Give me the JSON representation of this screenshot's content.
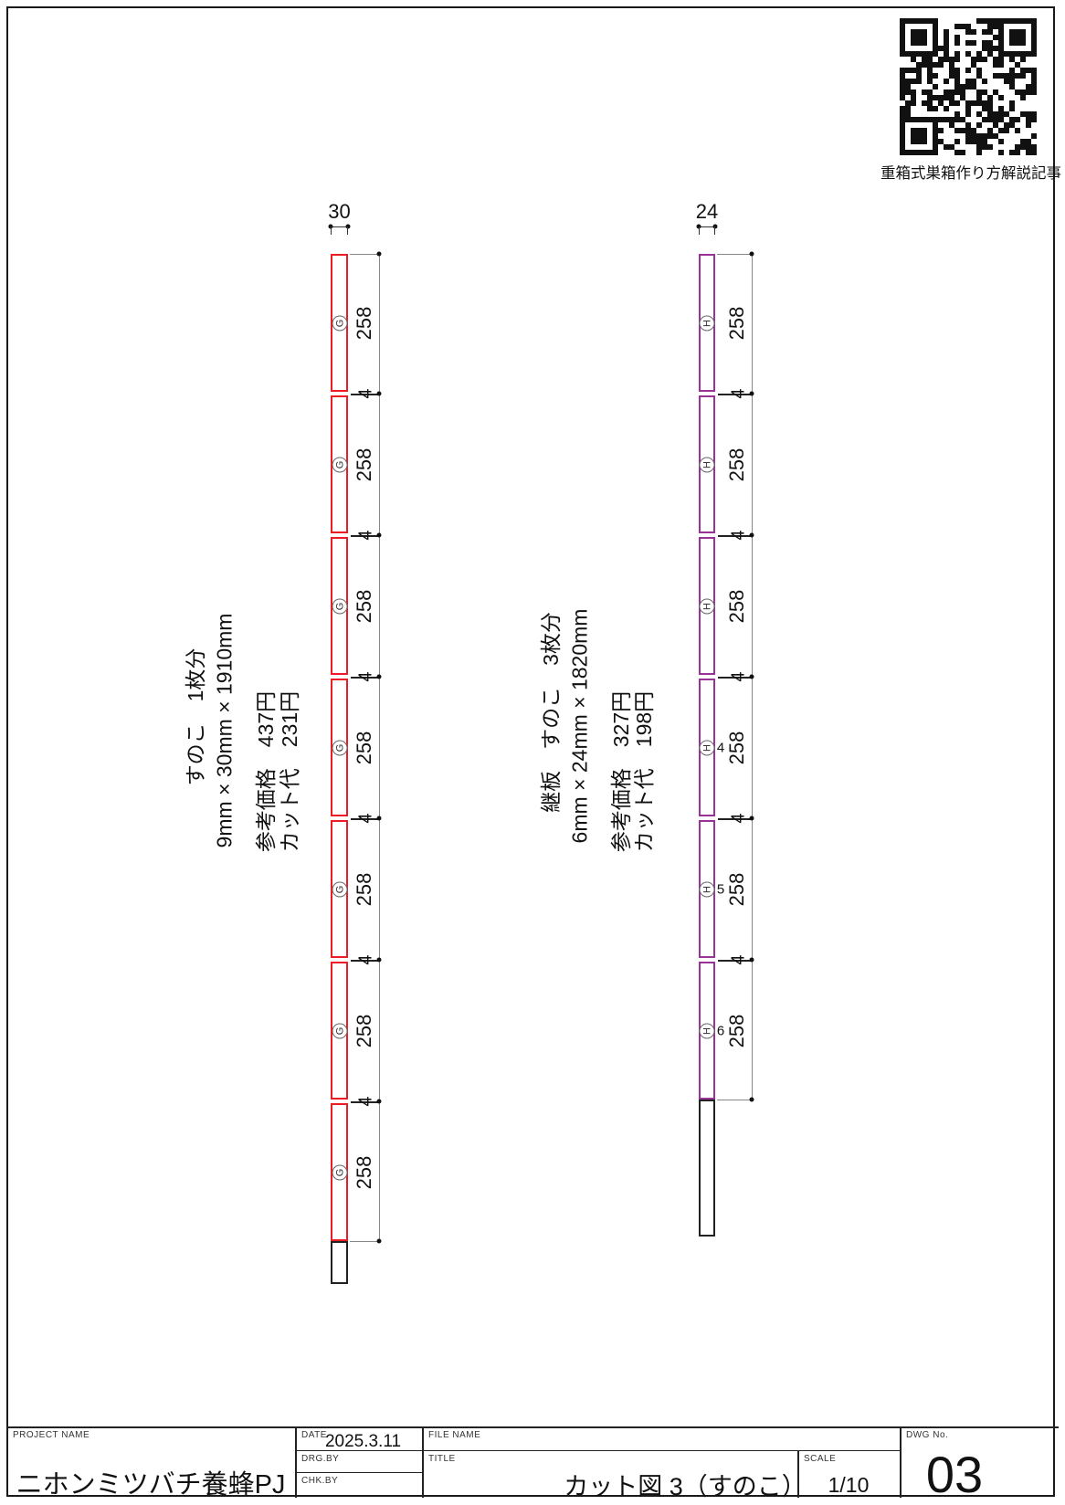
{
  "page": {
    "qr_caption": "重箱式巣箱作り方解説記事"
  },
  "strips": [
    {
      "width_label": "30",
      "piece_letter": "G",
      "seg_label": "258",
      "kerf_label": "4",
      "color": "#ed1c24",
      "segments": [
        "",
        "",
        "",
        "",
        "",
        "",
        ""
      ],
      "info_lines": [
        "すのこ　1枚分",
        "9mm × 30mm × 1910mm",
        "参考価格　437円",
        "カット代　231円"
      ]
    },
    {
      "width_label": "24",
      "piece_letter": "H",
      "seg_label": "258",
      "kerf_label": "4",
      "color": "#993399",
      "segments": [
        "",
        "",
        "",
        "4",
        "5",
        "6"
      ],
      "info_lines": [
        "継板　すのこ　3枚分",
        "6mm × 24mm × 1820mm",
        "参考価格　327円",
        "カット代　198円"
      ]
    }
  ],
  "title_block": {
    "project_label": "PROJECT NAME",
    "project_value": "ニホンミツバチ養蜂PJ",
    "date_label": "DATE",
    "date_value": "2025.3.11",
    "drg_label": "DRG.BY",
    "chk_label": "CHK.BY",
    "file_label": "FILE NAME",
    "title_label": "TITLE",
    "title_value": "カット図 3（すのこ）",
    "scale_label": "SCALE",
    "scale_value": "1/10",
    "dwg_label": "DWG No.",
    "dwg_value": "03"
  }
}
